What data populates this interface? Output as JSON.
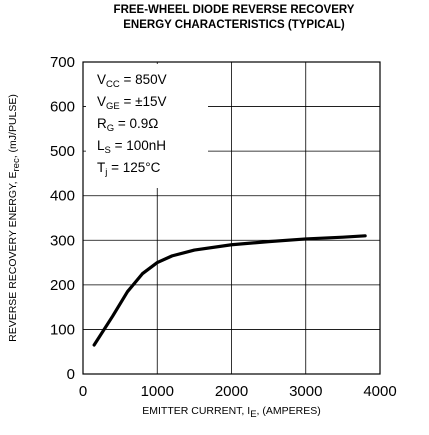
{
  "chart_data": {
    "type": "line",
    "title": [
      "FREE-WHEEL DIODE REVERSE RECOVERY",
      "ENERGY CHARACTERISTICS (TYPICAL)"
    ],
    "xlabel": {
      "text": "EMITTER CURRENT, I",
      "sub": "E",
      "after": ", (AMPERES)"
    },
    "ylabel": {
      "text": "REVERSE RECOVERY ENERGY, E",
      "sub": "rec",
      "after": ", (mJ/PULSE)"
    },
    "annotations": [
      {
        "text": "V",
        "sub": "CC",
        "after": " = 850V"
      },
      {
        "text": "V",
        "sub": "GE",
        "after": " = ±15V"
      },
      {
        "text": "R",
        "sub": "G",
        "after": " = 0.9Ω"
      },
      {
        "text": "L",
        "sub": "S",
        "after": " = 100nH"
      },
      {
        "text": "T",
        "sub": "j",
        "after": " = 125°C"
      }
    ],
    "x": [
      150,
      400,
      600,
      800,
      1000,
      1200,
      1500,
      2000,
      2500,
      3000,
      3500,
      3800
    ],
    "series": [
      {
        "color": "#000000",
        "values": [
          65,
          130,
          185,
          225,
          250,
          265,
          278,
          290,
          297,
          303,
          307,
          310
        ]
      }
    ],
    "xlim": [
      0,
      4000
    ],
    "xticks": [
      0,
      1000,
      2000,
      3000,
      4000
    ],
    "ylim": [
      0,
      700
    ],
    "yticks": [
      0,
      100,
      200,
      300,
      400,
      500,
      600,
      700
    ],
    "grid": true
  }
}
